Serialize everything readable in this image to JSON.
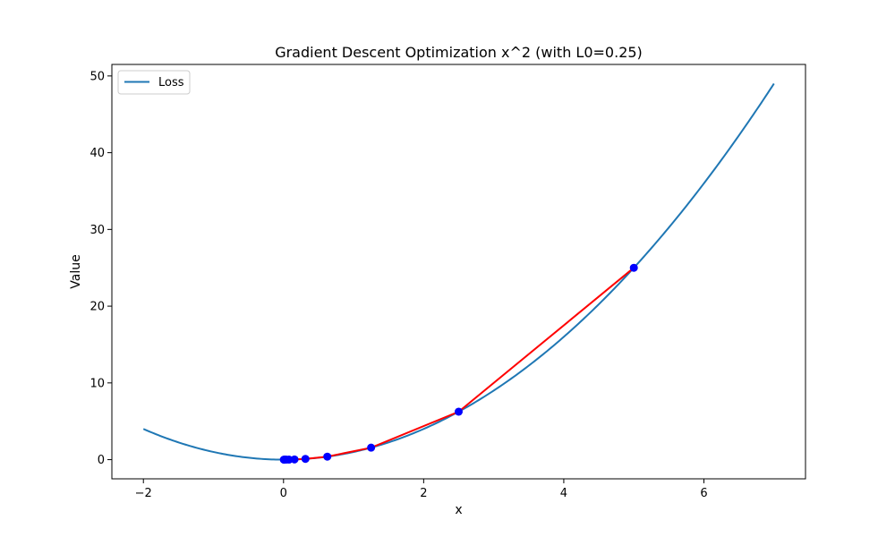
{
  "chart_data": {
    "type": "line",
    "title": "Gradient Descent Optimization x^2 (with L0=0.25)",
    "xlabel": "x",
    "ylabel": "Value",
    "xlim": [
      -2.45,
      7.45
    ],
    "ylim": [
      -2.5,
      51.5
    ],
    "xticks": [
      -2,
      0,
      2,
      4,
      6
    ],
    "yticks": [
      0,
      10,
      20,
      30,
      40,
      50
    ],
    "grid": false,
    "legend": {
      "position": "upper-left",
      "entries": [
        "Loss"
      ]
    },
    "series": [
      {
        "name": "Loss",
        "kind": "curve",
        "function": "x^2",
        "x_range": [
          -2,
          7
        ],
        "color": "#1f77b4"
      },
      {
        "kind": "path",
        "color": "#ff0000",
        "marker_color": "#0000ff",
        "points": [
          {
            "x": 5.0,
            "y": 25.0
          },
          {
            "x": 2.5,
            "y": 6.25
          },
          {
            "x": 1.25,
            "y": 1.5625
          },
          {
            "x": 0.625,
            "y": 0.390625
          },
          {
            "x": 0.3125,
            "y": 0.0977
          },
          {
            "x": 0.15625,
            "y": 0.0244
          },
          {
            "x": 0.078125,
            "y": 0.0061
          },
          {
            "x": 0.0390625,
            "y": 0.0015
          },
          {
            "x": 0.01953125,
            "y": 0.0004
          },
          {
            "x": 0.009765625,
            "y": 0.0001
          },
          {
            "x": 0.0048828125,
            "y": 0.0
          }
        ]
      }
    ]
  }
}
